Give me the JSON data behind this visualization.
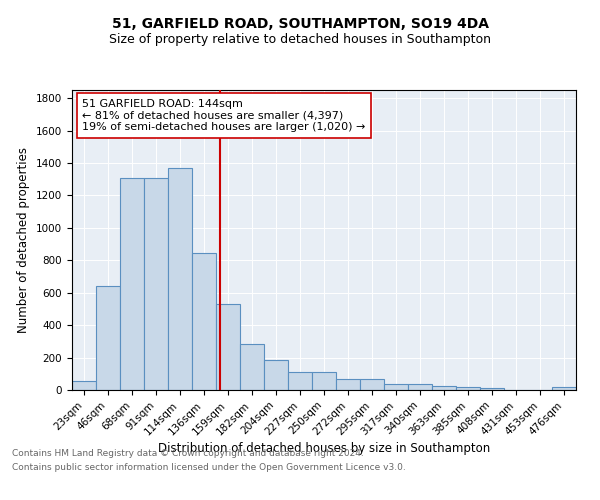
{
  "title": "51, GARFIELD ROAD, SOUTHAMPTON, SO19 4DA",
  "subtitle": "Size of property relative to detached houses in Southampton",
  "xlabel": "Distribution of detached houses by size in Southampton",
  "ylabel": "Number of detached properties",
  "categories": [
    "23sqm",
    "46sqm",
    "68sqm",
    "91sqm",
    "114sqm",
    "136sqm",
    "159sqm",
    "182sqm",
    "204sqm",
    "227sqm",
    "250sqm",
    "272sqm",
    "295sqm",
    "317sqm",
    "340sqm",
    "363sqm",
    "385sqm",
    "408sqm",
    "431sqm",
    "453sqm",
    "476sqm"
  ],
  "values": [
    55,
    640,
    1305,
    1310,
    1370,
    845,
    530,
    285,
    185,
    110,
    110,
    65,
    68,
    38,
    38,
    25,
    18,
    15,
    0,
    0,
    18
  ],
  "bar_color": "#c8d8e8",
  "bar_edge_color": "#5a8fc0",
  "vline_color": "#cc0000",
  "vline_pos": 5.65,
  "annotation_text": "51 GARFIELD ROAD: 144sqm\n← 81% of detached houses are smaller (4,397)\n19% of semi-detached houses are larger (1,020) →",
  "annotation_box_color": "#ffffff",
  "annotation_box_edge": "#cc0000",
  "ylim": [
    0,
    1850
  ],
  "yticks": [
    0,
    200,
    400,
    600,
    800,
    1000,
    1200,
    1400,
    1600,
    1800
  ],
  "background_color": "#e8eef5",
  "footer_line1": "Contains HM Land Registry data © Crown copyright and database right 2024.",
  "footer_line2": "Contains public sector information licensed under the Open Government Licence v3.0.",
  "title_fontsize": 10,
  "subtitle_fontsize": 9,
  "xlabel_fontsize": 8.5,
  "ylabel_fontsize": 8.5,
  "tick_fontsize": 7.5,
  "annotation_fontsize": 8,
  "footer_fontsize": 6.5
}
